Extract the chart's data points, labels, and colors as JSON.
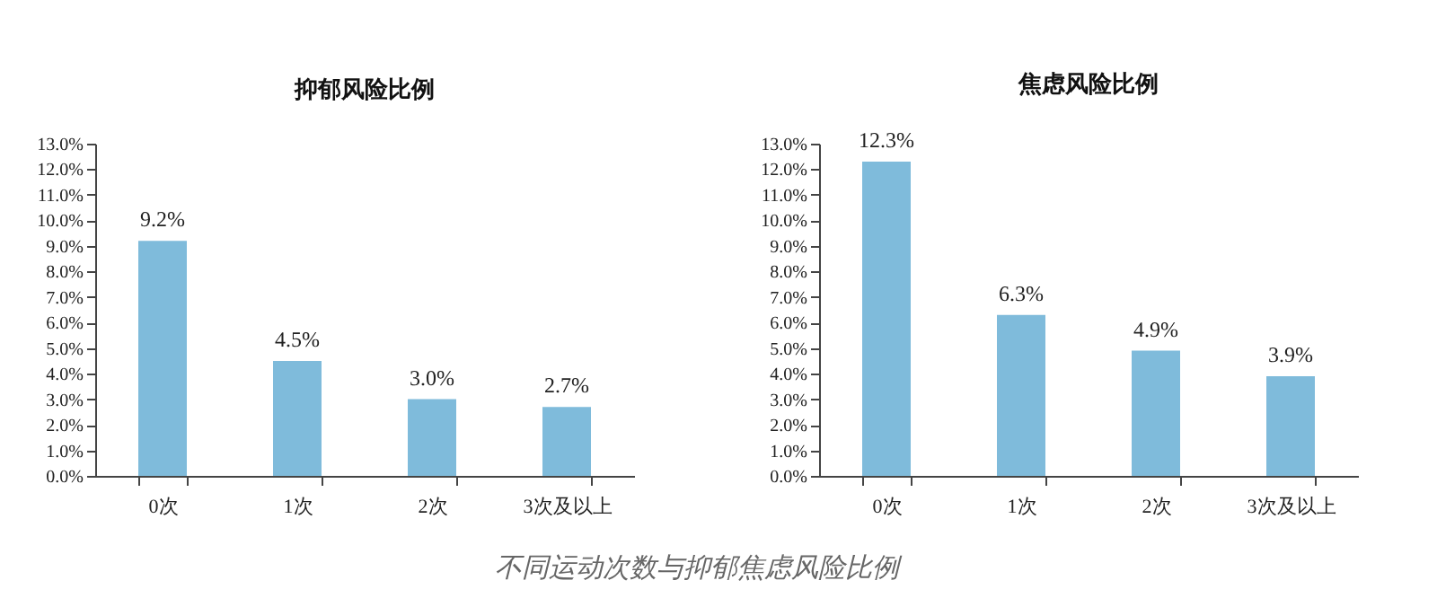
{
  "chart_data": [
    {
      "type": "bar",
      "title": "抑郁风险比例",
      "categories": [
        "0次",
        "1次",
        "2次",
        "3次及以上"
      ],
      "values": [
        9.2,
        4.5,
        3.0,
        2.7
      ],
      "color": "#7fbbdb",
      "value_labels": [
        "9.2%",
        "4.5%",
        "3.0%",
        "2.7%"
      ],
      "ylim": [
        0,
        13
      ],
      "yticks": [
        {
          "value": 0,
          "label": "0.0%"
        },
        {
          "value": 1,
          "label": "1.0%"
        },
        {
          "value": 2,
          "label": "2.0%"
        },
        {
          "value": 3,
          "label": "3.0%"
        },
        {
          "value": 4,
          "label": "4.0%"
        },
        {
          "value": 5,
          "label": "5.0%"
        },
        {
          "value": 6,
          "label": "6.0%"
        },
        {
          "value": 7,
          "label": "7.0%"
        },
        {
          "value": 8,
          "label": "8.0%"
        },
        {
          "value": 9,
          "label": "9.0%"
        },
        {
          "value": 10,
          "label": "10.0%"
        },
        {
          "value": 11,
          "label": "11.0%"
        },
        {
          "value": 12,
          "label": "12.0%"
        },
        {
          "value": 13,
          "label": "13.0%"
        }
      ],
      "grid": false,
      "annotations": [
        "不同运动次数与抑郁焦虑风险比例"
      ]
    },
    {
      "type": "bar",
      "title": "焦虑风险比例",
      "categories": [
        "0次",
        "1次",
        "2次",
        "3次及以上"
      ],
      "values": [
        12.3,
        6.3,
        4.9,
        3.9
      ],
      "color": "#7fbbdb",
      "value_labels": [
        "12.3%",
        "6.3%",
        "4.9%",
        "3.9%"
      ],
      "ylim": [
        0,
        13
      ],
      "yticks": [
        {
          "value": 0,
          "label": "0.0%"
        },
        {
          "value": 1,
          "label": "1.0%"
        },
        {
          "value": 2,
          "label": "2.0%"
        },
        {
          "value": 3,
          "label": "3.0%"
        },
        {
          "value": 4,
          "label": "4.0%"
        },
        {
          "value": 5,
          "label": "5.0%"
        },
        {
          "value": 6,
          "label": "6.0%"
        },
        {
          "value": 7,
          "label": "7.0%"
        },
        {
          "value": 8,
          "label": "8.0%"
        },
        {
          "value": 9,
          "label": "9.0%"
        },
        {
          "value": 10,
          "label": "10.0%"
        },
        {
          "value": 11,
          "label": "11.0%"
        },
        {
          "value": 12,
          "label": "12.0%"
        },
        {
          "value": 13,
          "label": "13.0%"
        }
      ],
      "grid": false
    }
  ]
}
